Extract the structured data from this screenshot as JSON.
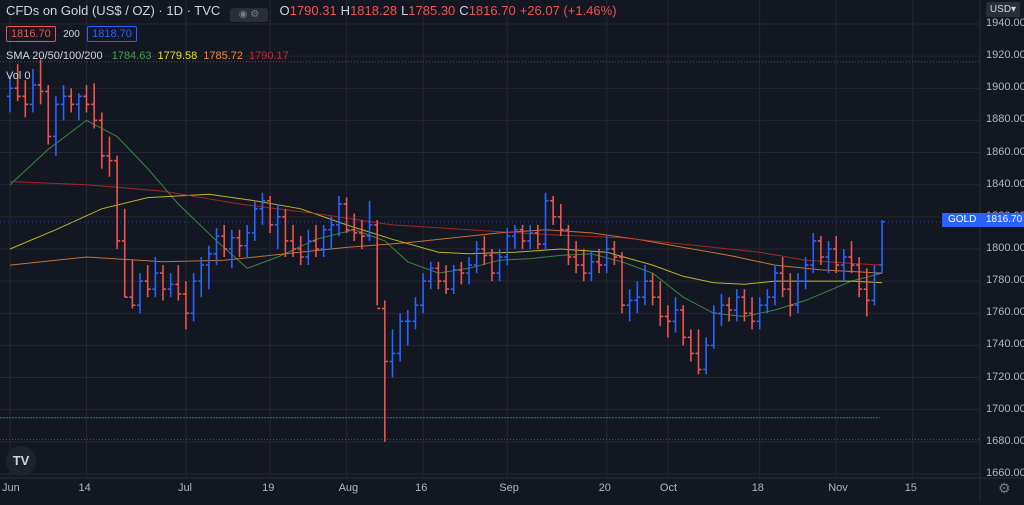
{
  "header": {
    "title": "CFDs on Gold (US$ / OZ) · 1D · TVC",
    "ohlc": [
      {
        "k": "O",
        "v": "1790.31"
      },
      {
        "k": "H",
        "v": "1818.28"
      },
      {
        "k": "L",
        "v": "1785.30"
      },
      {
        "k": "C",
        "v": "1816.70"
      },
      {
        "k": "",
        "v": "+26.07 (+1.46%)"
      }
    ],
    "bid": "1816.70",
    "spread": "200",
    "ask": "1818.70"
  },
  "indicators": {
    "sma_label": "SMA 20/50/100/200",
    "sma_values": [
      {
        "v": "1784.63",
        "color": "#43a047"
      },
      {
        "v": "1779.58",
        "color": "#e5e022"
      },
      {
        "v": "1785.72",
        "color": "#f08a3d"
      },
      {
        "v": "1790.17",
        "color": "#c62828"
      }
    ],
    "vol_label": "Vol 0"
  },
  "price_axis": {
    "currency": "USD",
    "ticks": [
      "1940.00",
      "1920.00",
      "1900.00",
      "1880.00",
      "1860.00",
      "1840.00",
      "1820.00",
      "1800.00",
      "1780.00",
      "1760.00",
      "1740.00",
      "1720.00",
      "1700.00",
      "1680.00",
      "1660.00"
    ],
    "symbol_tag": "GOLD",
    "last_price": "1816.70"
  },
  "time_axis": {
    "ticks": [
      {
        "label": "Jun",
        "i": 0
      },
      {
        "label": "14",
        "i": 10
      },
      {
        "label": "Jul",
        "i": 23
      },
      {
        "label": "19",
        "i": 34
      },
      {
        "label": "Aug",
        "i": 44
      },
      {
        "label": "16",
        "i": 54
      },
      {
        "label": "Sep",
        "i": 65
      },
      {
        "label": "20",
        "i": 78
      },
      {
        "label": "Oct",
        "i": 86
      },
      {
        "label": "18",
        "i": 98
      },
      {
        "label": "Nov",
        "i": 108
      },
      {
        "label": "15",
        "i": 118
      }
    ]
  },
  "logo": "TV",
  "colors": {
    "up": "#2962ff",
    "down": "#ef5350",
    "background": "#131722",
    "grid": "#242733"
  },
  "chart_data": {
    "type": "ohlc",
    "ylim": [
      1660,
      1940
    ],
    "bars": [
      {
        "o": 1895,
        "h": 1908,
        "l": 1885,
        "c": 1900
      },
      {
        "o": 1900,
        "h": 1915,
        "l": 1892,
        "c": 1895
      },
      {
        "o": 1895,
        "h": 1905,
        "l": 1882,
        "c": 1890
      },
      {
        "o": 1890,
        "h": 1912,
        "l": 1885,
        "c": 1902
      },
      {
        "o": 1902,
        "h": 1918,
        "l": 1890,
        "c": 1898
      },
      {
        "o": 1898,
        "h": 1902,
        "l": 1865,
        "c": 1870
      },
      {
        "o": 1870,
        "h": 1895,
        "l": 1858,
        "c": 1890
      },
      {
        "o": 1890,
        "h": 1902,
        "l": 1880,
        "c": 1895
      },
      {
        "o": 1895,
        "h": 1900,
        "l": 1885,
        "c": 1890
      },
      {
        "o": 1890,
        "h": 1897,
        "l": 1880,
        "c": 1895
      },
      {
        "o": 1895,
        "h": 1902,
        "l": 1885,
        "c": 1890
      },
      {
        "o": 1890,
        "h": 1903,
        "l": 1875,
        "c": 1880
      },
      {
        "o": 1880,
        "h": 1885,
        "l": 1850,
        "c": 1858
      },
      {
        "o": 1858,
        "h": 1870,
        "l": 1845,
        "c": 1855
      },
      {
        "o": 1855,
        "h": 1858,
        "l": 1800,
        "c": 1805
      },
      {
        "o": 1805,
        "h": 1825,
        "l": 1770,
        "c": 1770
      },
      {
        "o": 1770,
        "h": 1793,
        "l": 1763,
        "c": 1765
      },
      {
        "o": 1765,
        "h": 1785,
        "l": 1760,
        "c": 1780
      },
      {
        "o": 1780,
        "h": 1790,
        "l": 1770,
        "c": 1775
      },
      {
        "o": 1775,
        "h": 1795,
        "l": 1770,
        "c": 1785
      },
      {
        "o": 1785,
        "h": 1790,
        "l": 1768,
        "c": 1775
      },
      {
        "o": 1775,
        "h": 1785,
        "l": 1770,
        "c": 1778
      },
      {
        "o": 1778,
        "h": 1790,
        "l": 1768,
        "c": 1772
      },
      {
        "o": 1772,
        "h": 1780,
        "l": 1750,
        "c": 1760
      },
      {
        "o": 1760,
        "h": 1785,
        "l": 1755,
        "c": 1780
      },
      {
        "o": 1780,
        "h": 1795,
        "l": 1770,
        "c": 1790
      },
      {
        "o": 1790,
        "h": 1802,
        "l": 1775,
        "c": 1797
      },
      {
        "o": 1797,
        "h": 1813,
        "l": 1790,
        "c": 1808
      },
      {
        "o": 1808,
        "h": 1815,
        "l": 1795,
        "c": 1800
      },
      {
        "o": 1800,
        "h": 1812,
        "l": 1788,
        "c": 1807
      },
      {
        "o": 1807,
        "h": 1812,
        "l": 1795,
        "c": 1802
      },
      {
        "o": 1802,
        "h": 1815,
        "l": 1795,
        "c": 1810
      },
      {
        "o": 1810,
        "h": 1830,
        "l": 1805,
        "c": 1825
      },
      {
        "o": 1825,
        "h": 1835,
        "l": 1815,
        "c": 1830
      },
      {
        "o": 1830,
        "h": 1833,
        "l": 1810,
        "c": 1815
      },
      {
        "o": 1815,
        "h": 1828,
        "l": 1800,
        "c": 1820
      },
      {
        "o": 1820,
        "h": 1825,
        "l": 1795,
        "c": 1805
      },
      {
        "o": 1805,
        "h": 1815,
        "l": 1795,
        "c": 1800
      },
      {
        "o": 1800,
        "h": 1808,
        "l": 1790,
        "c": 1795
      },
      {
        "o": 1795,
        "h": 1812,
        "l": 1790,
        "c": 1805
      },
      {
        "o": 1805,
        "h": 1815,
        "l": 1795,
        "c": 1800
      },
      {
        "o": 1800,
        "h": 1815,
        "l": 1795,
        "c": 1812
      },
      {
        "o": 1812,
        "h": 1820,
        "l": 1800,
        "c": 1815
      },
      {
        "o": 1815,
        "h": 1833,
        "l": 1808,
        "c": 1828
      },
      {
        "o": 1828,
        "h": 1832,
        "l": 1810,
        "c": 1812
      },
      {
        "o": 1812,
        "h": 1822,
        "l": 1805,
        "c": 1810
      },
      {
        "o": 1810,
        "h": 1818,
        "l": 1800,
        "c": 1808
      },
      {
        "o": 1808,
        "h": 1830,
        "l": 1805,
        "c": 1815
      },
      {
        "o": 1815,
        "h": 1818,
        "l": 1765,
        "c": 1763
      },
      {
        "o": 1763,
        "h": 1768,
        "l": 1680,
        "c": 1730
      },
      {
        "o": 1730,
        "h": 1750,
        "l": 1720,
        "c": 1735
      },
      {
        "o": 1735,
        "h": 1760,
        "l": 1730,
        "c": 1755
      },
      {
        "o": 1755,
        "h": 1762,
        "l": 1740,
        "c": 1755
      },
      {
        "o": 1755,
        "h": 1770,
        "l": 1750,
        "c": 1765
      },
      {
        "o": 1765,
        "h": 1785,
        "l": 1760,
        "c": 1780
      },
      {
        "o": 1780,
        "h": 1792,
        "l": 1775,
        "c": 1788
      },
      {
        "o": 1788,
        "h": 1792,
        "l": 1775,
        "c": 1780
      },
      {
        "o": 1780,
        "h": 1790,
        "l": 1772,
        "c": 1775
      },
      {
        "o": 1775,
        "h": 1790,
        "l": 1772,
        "c": 1787
      },
      {
        "o": 1787,
        "h": 1792,
        "l": 1778,
        "c": 1785
      },
      {
        "o": 1785,
        "h": 1795,
        "l": 1778,
        "c": 1790
      },
      {
        "o": 1790,
        "h": 1805,
        "l": 1785,
        "c": 1800
      },
      {
        "o": 1800,
        "h": 1808,
        "l": 1790,
        "c": 1796
      },
      {
        "o": 1796,
        "h": 1800,
        "l": 1780,
        "c": 1785
      },
      {
        "o": 1785,
        "h": 1800,
        "l": 1780,
        "c": 1795
      },
      {
        "o": 1795,
        "h": 1813,
        "l": 1790,
        "c": 1808
      },
      {
        "o": 1808,
        "h": 1815,
        "l": 1800,
        "c": 1812
      },
      {
        "o": 1812,
        "h": 1815,
        "l": 1800,
        "c": 1805
      },
      {
        "o": 1805,
        "h": 1815,
        "l": 1800,
        "c": 1810
      },
      {
        "o": 1810,
        "h": 1815,
        "l": 1800,
        "c": 1803
      },
      {
        "o": 1803,
        "h": 1835,
        "l": 1800,
        "c": 1830
      },
      {
        "o": 1830,
        "h": 1833,
        "l": 1815,
        "c": 1820
      },
      {
        "o": 1820,
        "h": 1828,
        "l": 1808,
        "c": 1812
      },
      {
        "o": 1812,
        "h": 1815,
        "l": 1790,
        "c": 1795
      },
      {
        "o": 1795,
        "h": 1805,
        "l": 1785,
        "c": 1790
      },
      {
        "o": 1790,
        "h": 1800,
        "l": 1780,
        "c": 1785
      },
      {
        "o": 1785,
        "h": 1798,
        "l": 1780,
        "c": 1792
      },
      {
        "o": 1792,
        "h": 1800,
        "l": 1785,
        "c": 1790
      },
      {
        "o": 1790,
        "h": 1808,
        "l": 1785,
        "c": 1800
      },
      {
        "o": 1800,
        "h": 1805,
        "l": 1790,
        "c": 1795
      },
      {
        "o": 1795,
        "h": 1798,
        "l": 1760,
        "c": 1765
      },
      {
        "o": 1765,
        "h": 1775,
        "l": 1755,
        "c": 1768
      },
      {
        "o": 1768,
        "h": 1780,
        "l": 1760,
        "c": 1770
      },
      {
        "o": 1770,
        "h": 1790,
        "l": 1765,
        "c": 1780
      },
      {
        "o": 1780,
        "h": 1785,
        "l": 1765,
        "c": 1770
      },
      {
        "o": 1770,
        "h": 1780,
        "l": 1752,
        "c": 1758
      },
      {
        "o": 1758,
        "h": 1765,
        "l": 1745,
        "c": 1755
      },
      {
        "o": 1755,
        "h": 1770,
        "l": 1748,
        "c": 1762
      },
      {
        "o": 1762,
        "h": 1765,
        "l": 1740,
        "c": 1745
      },
      {
        "o": 1745,
        "h": 1750,
        "l": 1730,
        "c": 1735
      },
      {
        "o": 1735,
        "h": 1750,
        "l": 1722,
        "c": 1725
      },
      {
        "o": 1725,
        "h": 1745,
        "l": 1722,
        "c": 1740
      },
      {
        "o": 1740,
        "h": 1765,
        "l": 1738,
        "c": 1760
      },
      {
        "o": 1760,
        "h": 1772,
        "l": 1752,
        "c": 1765
      },
      {
        "o": 1765,
        "h": 1770,
        "l": 1755,
        "c": 1762
      },
      {
        "o": 1762,
        "h": 1775,
        "l": 1755,
        "c": 1770
      },
      {
        "o": 1770,
        "h": 1775,
        "l": 1755,
        "c": 1760
      },
      {
        "o": 1760,
        "h": 1770,
        "l": 1750,
        "c": 1755
      },
      {
        "o": 1755,
        "h": 1770,
        "l": 1750,
        "c": 1765
      },
      {
        "o": 1765,
        "h": 1775,
        "l": 1760,
        "c": 1770
      },
      {
        "o": 1770,
        "h": 1790,
        "l": 1765,
        "c": 1785
      },
      {
        "o": 1785,
        "h": 1795,
        "l": 1770,
        "c": 1775
      },
      {
        "o": 1775,
        "h": 1785,
        "l": 1758,
        "c": 1765
      },
      {
        "o": 1765,
        "h": 1785,
        "l": 1760,
        "c": 1780
      },
      {
        "o": 1780,
        "h": 1795,
        "l": 1775,
        "c": 1790
      },
      {
        "o": 1790,
        "h": 1810,
        "l": 1785,
        "c": 1805
      },
      {
        "o": 1805,
        "h": 1808,
        "l": 1790,
        "c": 1795
      },
      {
        "o": 1795,
        "h": 1805,
        "l": 1785,
        "c": 1800
      },
      {
        "o": 1800,
        "h": 1808,
        "l": 1785,
        "c": 1790
      },
      {
        "o": 1790,
        "h": 1800,
        "l": 1780,
        "c": 1795
      },
      {
        "o": 1795,
        "h": 1805,
        "l": 1785,
        "c": 1790
      },
      {
        "o": 1790,
        "h": 1795,
        "l": 1770,
        "c": 1775
      },
      {
        "o": 1775,
        "h": 1788,
        "l": 1758,
        "c": 1768
      },
      {
        "o": 1768,
        "h": 1790,
        "l": 1765,
        "c": 1785
      },
      {
        "o": 1790,
        "h": 1818,
        "l": 1785,
        "c": 1817
      }
    ],
    "sma": [
      {
        "period": 20,
        "color": "#43a047",
        "points": [
          [
            0,
            1840
          ],
          [
            5,
            1862
          ],
          [
            10,
            1880
          ],
          [
            14,
            1870
          ],
          [
            18,
            1850
          ],
          [
            22,
            1828
          ],
          [
            27,
            1805
          ],
          [
            31,
            1788
          ],
          [
            35,
            1795
          ],
          [
            40,
            1806
          ],
          [
            45,
            1812
          ],
          [
            49,
            1805
          ],
          [
            52,
            1792
          ],
          [
            56,
            1785
          ],
          [
            60,
            1788
          ],
          [
            64,
            1793
          ],
          [
            68,
            1794
          ],
          [
            72,
            1796
          ],
          [
            76,
            1797
          ],
          [
            80,
            1792
          ],
          [
            84,
            1785
          ],
          [
            88,
            1770
          ],
          [
            92,
            1760
          ],
          [
            96,
            1758
          ],
          [
            100,
            1762
          ],
          [
            104,
            1768
          ],
          [
            107,
            1774
          ],
          [
            110,
            1780
          ],
          [
            114,
            1785
          ]
        ]
      },
      {
        "period": 50,
        "color": "#e5e022",
        "points": [
          [
            0,
            1800
          ],
          [
            6,
            1812
          ],
          [
            12,
            1825
          ],
          [
            18,
            1832
          ],
          [
            26,
            1834
          ],
          [
            32,
            1830
          ],
          [
            38,
            1825
          ],
          [
            44,
            1815
          ],
          [
            50,
            1806
          ],
          [
            56,
            1798
          ],
          [
            60,
            1797
          ],
          [
            66,
            1798
          ],
          [
            72,
            1800
          ],
          [
            78,
            1798
          ],
          [
            84,
            1790
          ],
          [
            88,
            1783
          ],
          [
            92,
            1779
          ],
          [
            96,
            1778
          ],
          [
            100,
            1780
          ],
          [
            106,
            1780
          ],
          [
            110,
            1780
          ],
          [
            114,
            1779
          ]
        ]
      },
      {
        "period": 100,
        "color": "#f08a3d",
        "points": [
          [
            0,
            1790
          ],
          [
            10,
            1795
          ],
          [
            20,
            1792
          ],
          [
            28,
            1793
          ],
          [
            36,
            1797
          ],
          [
            44,
            1801
          ],
          [
            52,
            1804
          ],
          [
            58,
            1807
          ],
          [
            64,
            1810
          ],
          [
            70,
            1812
          ],
          [
            76,
            1810
          ],
          [
            82,
            1806
          ],
          [
            88,
            1801
          ],
          [
            94,
            1796
          ],
          [
            100,
            1790
          ],
          [
            106,
            1787
          ],
          [
            110,
            1786
          ],
          [
            114,
            1785
          ]
        ]
      },
      {
        "period": 200,
        "color": "#c62828",
        "points": [
          [
            0,
            1842
          ],
          [
            10,
            1840
          ],
          [
            20,
            1836
          ],
          [
            30,
            1828
          ],
          [
            40,
            1822
          ],
          [
            50,
            1815
          ],
          [
            60,
            1812
          ],
          [
            70,
            1809
          ],
          [
            80,
            1807
          ],
          [
            90,
            1802
          ],
          [
            98,
            1798
          ],
          [
            104,
            1793
          ],
          [
            110,
            1791
          ],
          [
            114,
            1790
          ]
        ]
      }
    ]
  }
}
